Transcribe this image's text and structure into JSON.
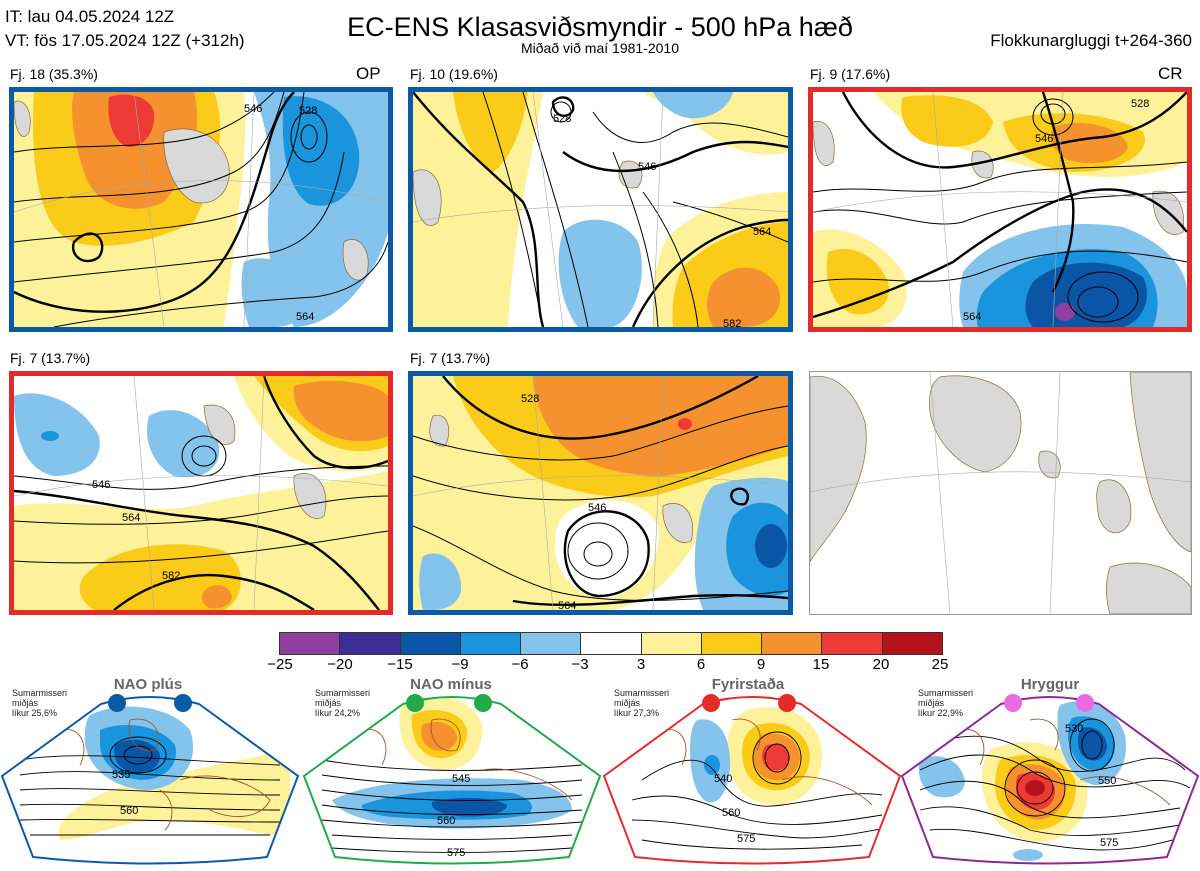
{
  "header": {
    "it_line": "IT: lau 04.05.2024 12Z",
    "vt_line": "VT: fös 17.05.2024 12Z  (+312h)",
    "title": "EC-ENS Klasasviðsmyndir - 500 hPa hæð",
    "subtitle": "Miðað við maí 1981-2010",
    "window": "Flokkunargluggi t+264-360"
  },
  "panels": [
    {
      "label": "Fj. 18 (35.3%)",
      "tag": "OP",
      "frame_color": "#0b5aa6",
      "contour_labels": [
        "546",
        "528",
        "564"
      ]
    },
    {
      "label": "Fj. 10 (19.6%)",
      "tag": "",
      "frame_color": "#0b5aa6",
      "contour_labels": [
        "528",
        "546",
        "564",
        "582"
      ]
    },
    {
      "label": "Fj. 9 (17.6%)",
      "tag": "CR",
      "frame_color": "#e52a2a",
      "contour_labels": [
        "546",
        "564",
        "528"
      ]
    },
    {
      "label": "Fj. 7 (13.7%)",
      "tag": "",
      "frame_color": "#e52a2a",
      "contour_labels": [
        "546",
        "564",
        "582"
      ]
    },
    {
      "label": "Fj. 7 (13.7%)",
      "tag": "",
      "frame_color": "#0b5aa6",
      "contour_labels": [
        "528",
        "546",
        "564"
      ]
    }
  ],
  "colorbar": {
    "colors": [
      "#8e3fa0",
      "#3c2e96",
      "#0b55a6",
      "#1a94dc",
      "#84c4ec",
      "#ffffff",
      "#fdf29a",
      "#fbcb19",
      "#f5912f",
      "#ee3a35",
      "#b5121b"
    ],
    "labels": [
      "−25",
      "−20",
      "−15",
      "−9",
      "−6",
      "−3",
      "3",
      "6",
      "9",
      "15",
      "20",
      "25"
    ]
  },
  "regimes": [
    {
      "name": "NAO plús",
      "season": "Sumarmisseri",
      "location": "miðjás",
      "likelihood": "líkur 25,6%",
      "dot_color": "#0b5aa6",
      "frame_color": "#0b5aa6",
      "contour_labels": [
        "535",
        "560"
      ]
    },
    {
      "name": "NAO mínus",
      "season": "Sumarmisseri",
      "location": "miðjás",
      "likelihood": "líkur 24,2%",
      "dot_color": "#23aa4b",
      "frame_color": "#23aa4b",
      "contour_labels": [
        "545",
        "560",
        "575"
      ]
    },
    {
      "name": "Fyrirstaða",
      "season": "Sumarmisseri",
      "location": "miðjás",
      "likelihood": "líkur 27,3%",
      "dot_color": "#e52a2a",
      "frame_color": "#e52a2a",
      "contour_labels": [
        "540",
        "560",
        "575"
      ]
    },
    {
      "name": "Hryggur",
      "season": "Sumarmisseri",
      "location": "miðjás",
      "likelihood": "líkur 22,9%",
      "dot_color": "#e86be0",
      "frame_color": "#8b2a93",
      "contour_labels": [
        "530",
        "550",
        "575"
      ]
    }
  ]
}
